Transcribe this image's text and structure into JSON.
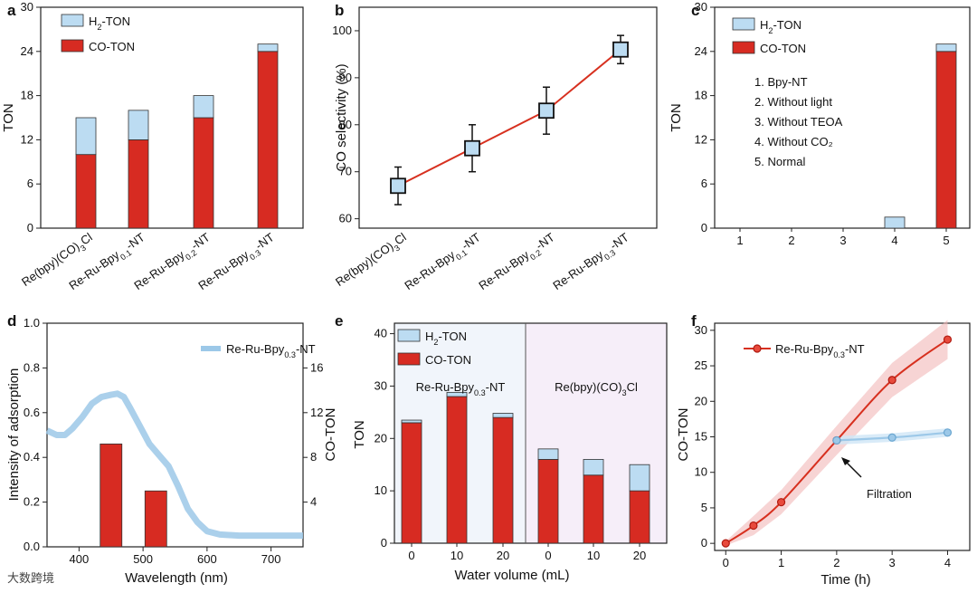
{
  "colors": {
    "co": "#d72b22",
    "h2": "#bcdcf2",
    "line_red": "#d7301f",
    "line_blue": "#9cc8e8",
    "band_red": "#f2b8b8",
    "band_blue": "#cfe6f6",
    "panel_e_left": "#f1f5fb",
    "panel_e_right": "#f6eef9"
  },
  "watermark": "大数跨境",
  "chart_data": [
    {
      "panel": "a",
      "type": "bar",
      "ylabel": "TON",
      "ylim": [
        0,
        30
      ],
      "yticks": [
        "0",
        "6",
        "12",
        "18",
        "24",
        "30"
      ],
      "legend": [
        "H2-TON",
        "CO-TON"
      ],
      "categories": [
        "Re(bpy)(CO)3Cl",
        "Re-Ru-Bpy0.1-NT",
        "Re-Ru-Bpy0.2-NT",
        "Re-Ru-Bpy0.3-NT"
      ],
      "series": [
        {
          "name": "CO-TON",
          "values": [
            10,
            12,
            15,
            24
          ]
        },
        {
          "name": "H2-TON",
          "values": [
            5,
            4,
            3,
            1
          ]
        }
      ]
    },
    {
      "panel": "b",
      "type": "line",
      "ylabel": "CO selectivity (%)",
      "ylim": [
        58,
        105
      ],
      "yticks": [
        "60",
        "70",
        "80",
        "90",
        "100"
      ],
      "categories": [
        "Re(bpy)(CO)3Cl",
        "Re-Ru-Bpy0.1-NT",
        "Re-Ru-Bpy0.2-NT",
        "Re-Ru-Bpy0.3-NT"
      ],
      "values": [
        67,
        75,
        83,
        96
      ],
      "errors": [
        4,
        5,
        5,
        3
      ]
    },
    {
      "panel": "c",
      "type": "bar",
      "ylabel": "TON",
      "ylim": [
        0,
        30
      ],
      "yticks": [
        "0",
        "6",
        "12",
        "18",
        "24",
        "30"
      ],
      "legend": [
        "H2-TON",
        "CO-TON"
      ],
      "categories": [
        "1",
        "2",
        "3",
        "4",
        "5"
      ],
      "series": [
        {
          "name": "CO-TON",
          "values": [
            0,
            0,
            0,
            0,
            24
          ]
        },
        {
          "name": "H2-TON",
          "values": [
            0,
            0,
            0,
            1.5,
            1
          ]
        }
      ],
      "notes": [
        "1. Bpy-NT",
        "2. Without light",
        "3. Without TEOA",
        "4. Without CO₂",
        "5. Normal"
      ]
    },
    {
      "panel": "d",
      "type": "line",
      "xlabel": "Wavelength (nm)",
      "ylabel": "Intensity of adsorption",
      "ylabel_right": "CO-TON",
      "xlim": [
        350,
        750
      ],
      "ylim": [
        0,
        1.0
      ],
      "ylim_right": [
        0,
        20
      ],
      "xticks": [
        "400",
        "500",
        "600",
        "700"
      ],
      "yticks": [
        "0.0",
        "0.2",
        "0.4",
        "0.6",
        "0.8",
        "1.0"
      ],
      "yticks_right": [
        "4",
        "8",
        "12",
        "16"
      ],
      "legend": [
        "Re-Ru-Bpy0.3-NT"
      ],
      "spectrum": [
        [
          350,
          0.52
        ],
        [
          365,
          0.5
        ],
        [
          378,
          0.5
        ],
        [
          390,
          0.53
        ],
        [
          405,
          0.58
        ],
        [
          420,
          0.64
        ],
        [
          435,
          0.67
        ],
        [
          450,
          0.68
        ],
        [
          460,
          0.685
        ],
        [
          470,
          0.67
        ],
        [
          480,
          0.62
        ],
        [
          495,
          0.54
        ],
        [
          510,
          0.46
        ],
        [
          525,
          0.41
        ],
        [
          540,
          0.36
        ],
        [
          555,
          0.27
        ],
        [
          570,
          0.17
        ],
        [
          585,
          0.11
        ],
        [
          600,
          0.07
        ],
        [
          620,
          0.055
        ],
        [
          650,
          0.05
        ],
        [
          700,
          0.05
        ],
        [
          750,
          0.05
        ]
      ],
      "bars": [
        {
          "x": 450,
          "value": 9.2
        },
        {
          "x": 520,
          "value": 5.0
        }
      ]
    },
    {
      "panel": "e",
      "type": "bar",
      "xlabel": "Water volume (mL)",
      "ylabel": "TON",
      "ylim": [
        0,
        42
      ],
      "yticks": [
        "0",
        "10",
        "20",
        "30",
        "40"
      ],
      "legend": [
        "H2-TON",
        "CO-TON"
      ],
      "groups": [
        {
          "label": "Re-Ru-Bpy0.3-NT",
          "categories": [
            "0",
            "10",
            "20"
          ],
          "co": [
            23,
            28,
            24
          ],
          "h2": [
            0.5,
            0.8,
            0.8
          ]
        },
        {
          "label": "Re(bpy)(CO)3Cl",
          "categories": [
            "0",
            "10",
            "20"
          ],
          "co": [
            16,
            13,
            10
          ],
          "h2": [
            2,
            3,
            5
          ]
        }
      ]
    },
    {
      "panel": "f",
      "type": "line",
      "xlabel": "Time (h)",
      "ylabel": "CO-TON",
      "xlim": [
        -0.2,
        4.4
      ],
      "ylim": [
        -1,
        31
      ],
      "xticks": [
        "0",
        "1",
        "2",
        "3",
        "4"
      ],
      "yticks": [
        "0",
        "5",
        "10",
        "15",
        "20",
        "25",
        "30"
      ],
      "legend": [
        "Re-Ru-Bpy0.3-NT"
      ],
      "series": [
        {
          "name": "Re-Ru-Bpy0.3-NT",
          "x": [
            0,
            0.5,
            1,
            2,
            3,
            4
          ],
          "y": [
            0,
            2.5,
            5.8,
            14.5,
            23,
            28.7
          ]
        },
        {
          "name": "Filtration",
          "x": [
            2,
            3,
            4
          ],
          "y": [
            14.5,
            14.9,
            15.6
          ]
        }
      ],
      "annotation": "Filtration"
    }
  ]
}
